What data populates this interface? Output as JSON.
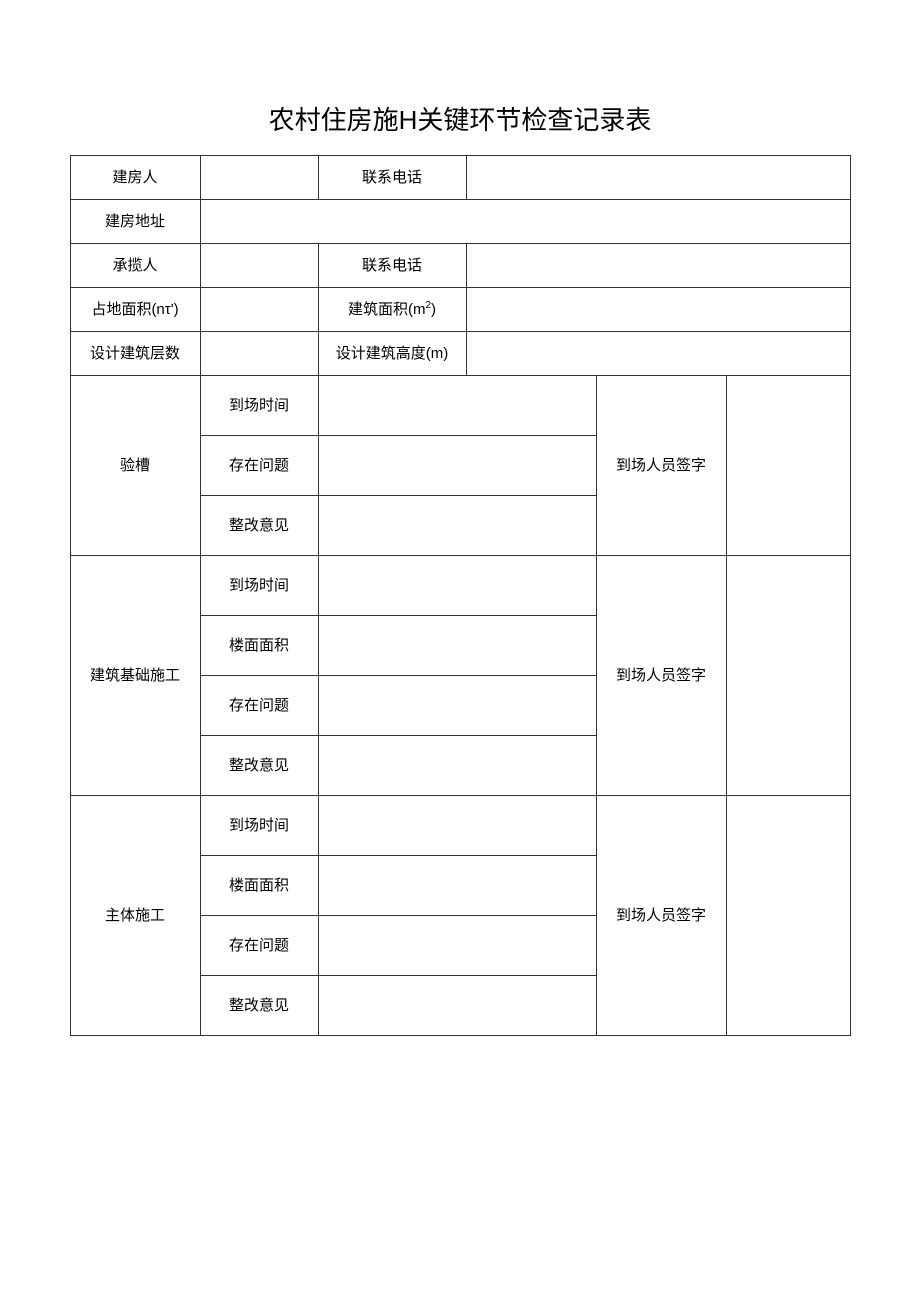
{
  "title": "农村住房施H关键环节检查记录表",
  "header": {
    "builder_label": "建房人",
    "phone_label": "联系电话",
    "address_label": "建房地址",
    "contractor_label": "承揽人",
    "land_area_label": "占地面积(nτ')",
    "building_area_label_prefix": "建筑面积(m",
    "building_area_label_suffix": ")",
    "design_floors_label": "设计建筑层数",
    "design_height_label": "设计建筑高度(m)"
  },
  "sections": [
    {
      "name": "验槽",
      "rows": [
        {
          "label": "到场时间",
          "value": ""
        },
        {
          "label": "存在问题",
          "value": ""
        },
        {
          "label": "整改意见",
          "value": ""
        }
      ],
      "signature_label": "到场人员签字",
      "signature_value": ""
    },
    {
      "name": "建筑基础施工",
      "rows": [
        {
          "label": "到场时间",
          "value": ""
        },
        {
          "label": "楼面面积",
          "value": ""
        },
        {
          "label": "存在问题",
          "value": ""
        },
        {
          "label": "整改意见",
          "value": ""
        }
      ],
      "signature_label": "到场人员签字",
      "signature_value": ""
    },
    {
      "name": "主体施工",
      "rows": [
        {
          "label": "到场时间",
          "value": ""
        },
        {
          "label": "楼面面积",
          "value": ""
        },
        {
          "label": "存在问题",
          "value": ""
        },
        {
          "label": "整改意见",
          "value": ""
        }
      ],
      "signature_label": "到场人员签字",
      "signature_value": ""
    }
  ],
  "colors": {
    "background": "#ffffff",
    "text": "#000000",
    "border": "#333333"
  }
}
